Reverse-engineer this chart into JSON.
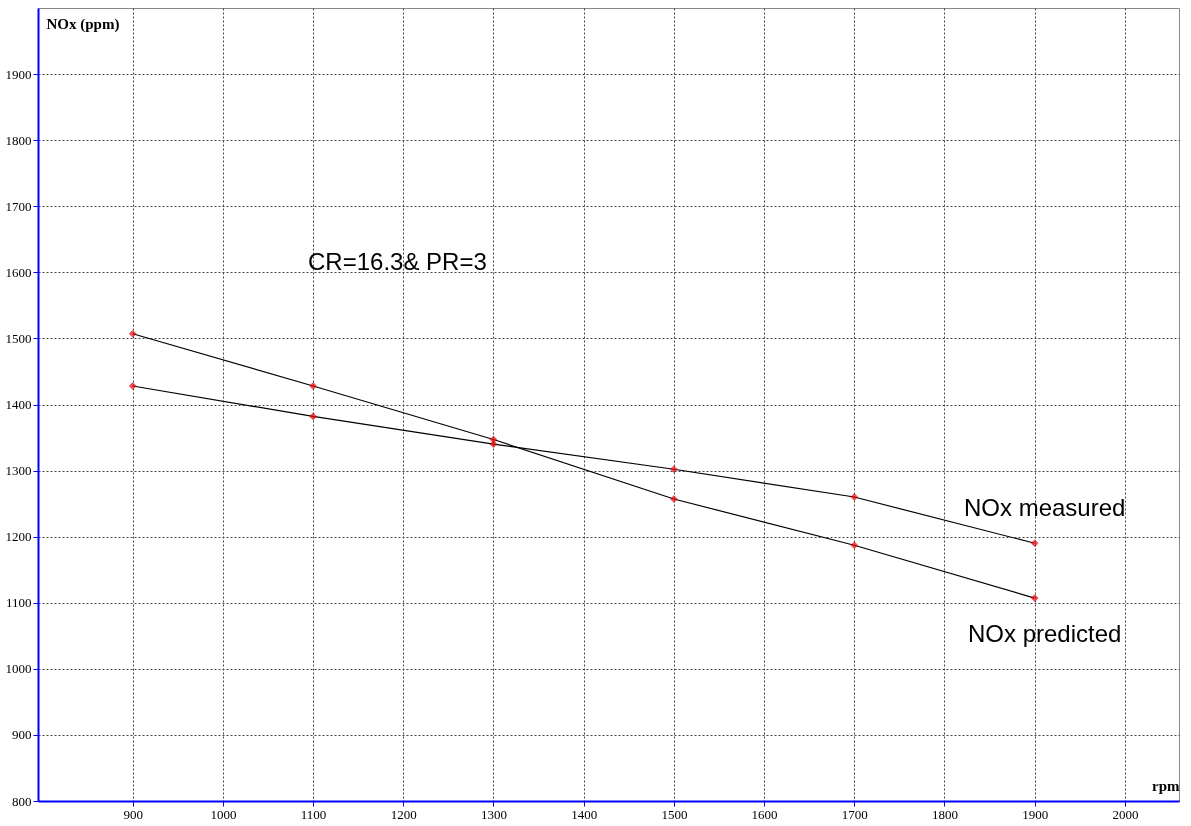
{
  "chart_data": {
    "type": "line",
    "xlabel": "rpm",
    "ylabel": "NOx (ppm)",
    "x": [
      900,
      1100,
      1300,
      1500,
      1700,
      1900
    ],
    "series": [
      {
        "name": "NOx measured",
        "color": "#000000",
        "values": [
          1428,
          1382,
          1340,
          1302,
          1260,
          1190
        ]
      },
      {
        "name": "NOx predicted",
        "color": "#000000",
        "values": [
          1507,
          1428,
          1347,
          1257,
          1187,
          1107
        ]
      }
    ],
    "xlim": [
      795,
      2060
    ],
    "xticks": [
      900,
      1000,
      1100,
      1200,
      1300,
      1400,
      1500,
      1600,
      1700,
      1800,
      1900,
      2000
    ],
    "ylim": [
      800,
      2000
    ],
    "yticks": [
      800,
      900,
      1000,
      1100,
      1200,
      1300,
      1400,
      1500,
      1600,
      1700,
      1800,
      1900
    ],
    "annotations": [
      "CR=16.3& PR=3"
    ],
    "grid": true,
    "marker": "diamond",
    "line_style": "solid"
  }
}
